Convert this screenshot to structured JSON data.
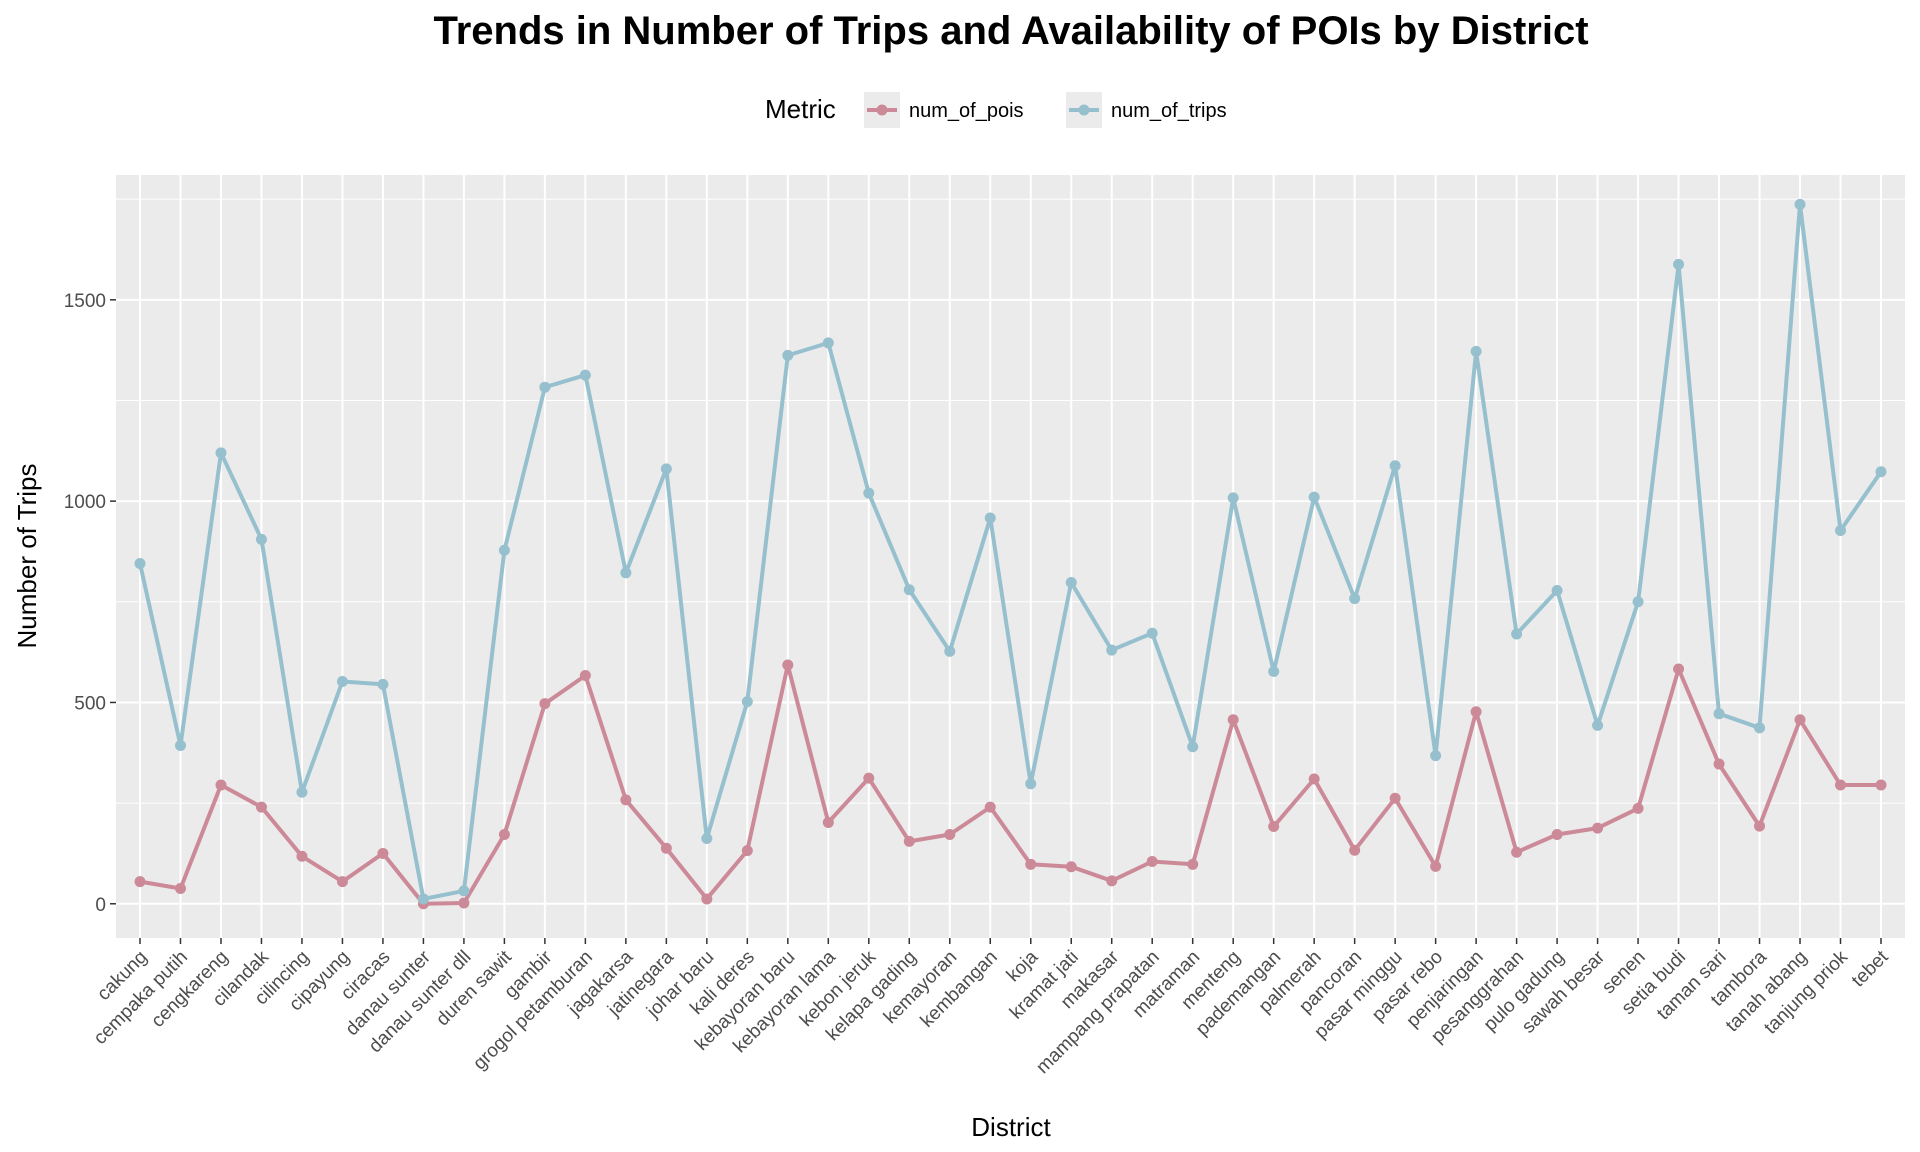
{
  "chart_data": {
    "type": "line",
    "title": "Trends in Number of Trips and Availability of POIs by District",
    "xlabel": "District",
    "ylabel": "Number of Trips",
    "legend_title": "Metric",
    "legend_position": "top",
    "grid": true,
    "ylim": [
      -85,
      1810
    ],
    "yticks": [
      0,
      500,
      1000,
      1500
    ],
    "categories": [
      "cakung",
      "cempaka putih",
      "cengkareng",
      "cilandak",
      "cilincing",
      "cipayung",
      "ciracas",
      "danau sunter",
      "danau sunter dll",
      "duren sawit",
      "gambir",
      "grogol petamburan",
      "jagakarsa",
      "jatinegara",
      "johar baru",
      "kali deres",
      "kebayoran baru",
      "kebayoran lama",
      "kebon jeruk",
      "kelapa gading",
      "kemayoran",
      "kembangan",
      "koja",
      "kramat jati",
      "makasar",
      "mampang prapatan",
      "matraman",
      "menteng",
      "pademangan",
      "palmerah",
      "pancoran",
      "pasar minggu",
      "pasar rebo",
      "penjaringan",
      "pesanggrahan",
      "pulo gadung",
      "sawah besar",
      "senen",
      "setia budi",
      "taman sari",
      "tambora",
      "tanah abang",
      "tanjung priok",
      "tebet"
    ],
    "series": [
      {
        "name": "num_of_pois",
        "color": "#cc8a98",
        "values": [
          55,
          38,
          295,
          240,
          118,
          55,
          125,
          0,
          2,
          172,
          497,
          567,
          258,
          138,
          12,
          132,
          593,
          202,
          312,
          155,
          172,
          240,
          98,
          92,
          57,
          105,
          98,
          457,
          192,
          310,
          133,
          262,
          93,
          477,
          128,
          172,
          188,
          237,
          583,
          347,
          193,
          457,
          295,
          295
        ]
      },
      {
        "name": "num_of_trips",
        "color": "#96c0ce",
        "values": [
          845,
          393,
          1120,
          905,
          277,
          552,
          545,
          12,
          32,
          878,
          1283,
          1313,
          822,
          1080,
          162,
          502,
          1362,
          1393,
          1020,
          780,
          627,
          958,
          298,
          798,
          630,
          672,
          390,
          1008,
          577,
          1010,
          758,
          1088,
          368,
          1372,
          670,
          778,
          443,
          750,
          1588,
          472,
          437,
          1737,
          927,
          1073
        ]
      }
    ]
  }
}
